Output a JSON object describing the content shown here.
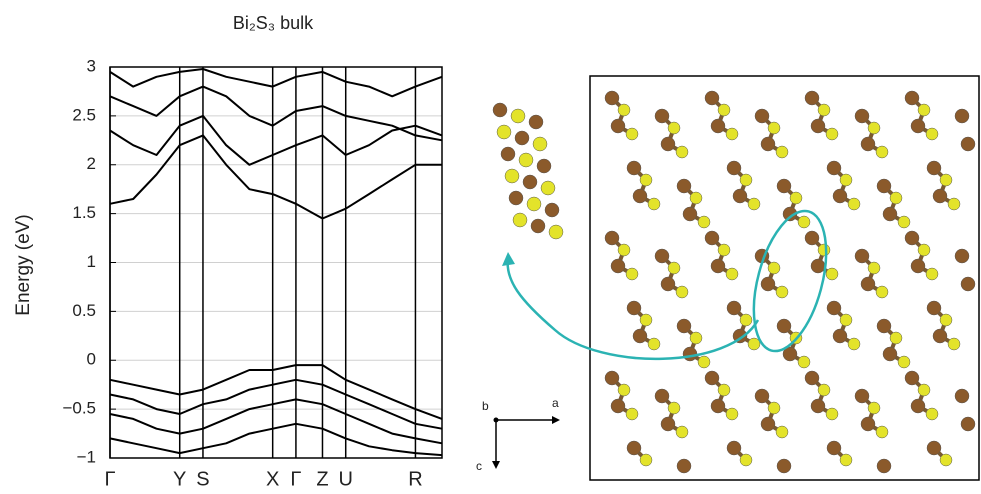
{
  "chart_data": {
    "type": "line",
    "title": "Bi₂S₃ bulk",
    "y_label": "Energy (eV)",
    "x": [
      0,
      0.07,
      0.14,
      0.21,
      0.28,
      0.35,
      0.42,
      0.49,
      0.56,
      0.64,
      0.71,
      0.78,
      0.85,
      0.92,
      1.0
    ],
    "xlim": [
      0,
      1
    ],
    "xticks": [
      {
        "value": 0,
        "label": "Γ"
      },
      {
        "value": 0.21,
        "label": "Y"
      },
      {
        "value": 0.28,
        "label": "S"
      },
      {
        "value": 0.49,
        "label": "X"
      },
      {
        "value": 0.56,
        "label": "Γ"
      },
      {
        "value": 0.64,
        "label": "Z"
      },
      {
        "value": 0.71,
        "label": "U"
      },
      {
        "value": 0.92,
        "label": "R"
      }
    ],
    "ylim": [
      -1,
      3
    ],
    "yticks": [
      {
        "value": -1,
        "label": "−1"
      },
      {
        "value": -0.5,
        "label": "−0.5"
      },
      0,
      0.5,
      1,
      1.5,
      2,
      2.5,
      3
    ],
    "grid": true,
    "series": [
      {
        "color": "#000000",
        "values": [
          1.6,
          1.65,
          1.9,
          2.2,
          2.3,
          2.0,
          1.75,
          1.7,
          1.6,
          1.45,
          1.55,
          1.7,
          1.85,
          2.0,
          2.0
        ]
      },
      {
        "color": "#000000",
        "values": [
          2.35,
          2.2,
          2.1,
          2.4,
          2.5,
          2.2,
          2.0,
          2.1,
          2.2,
          2.3,
          2.1,
          2.2,
          2.35,
          2.4,
          2.3
        ]
      },
      {
        "color": "#000000",
        "values": [
          2.7,
          2.6,
          2.5,
          2.7,
          2.8,
          2.7,
          2.5,
          2.4,
          2.55,
          2.6,
          2.5,
          2.45,
          2.4,
          2.3,
          2.25
        ]
      },
      {
        "color": "#000000",
        "values": [
          2.95,
          2.8,
          2.9,
          2.95,
          2.98,
          2.9,
          2.85,
          2.8,
          2.9,
          2.95,
          2.85,
          2.8,
          2.7,
          2.8,
          2.9
        ]
      },
      {
        "color": "#000000",
        "values": [
          -0.2,
          -0.25,
          -0.3,
          -0.35,
          -0.3,
          -0.2,
          -0.1,
          -0.1,
          -0.05,
          -0.05,
          -0.2,
          -0.3,
          -0.4,
          -0.5,
          -0.6
        ]
      },
      {
        "color": "#000000",
        "values": [
          -0.35,
          -0.4,
          -0.5,
          -0.55,
          -0.45,
          -0.4,
          -0.3,
          -0.25,
          -0.2,
          -0.25,
          -0.35,
          -0.45,
          -0.55,
          -0.65,
          -0.7
        ]
      },
      {
        "color": "#000000",
        "values": [
          -0.55,
          -0.6,
          -0.7,
          -0.75,
          -0.7,
          -0.6,
          -0.5,
          -0.45,
          -0.4,
          -0.45,
          -0.55,
          -0.65,
          -0.75,
          -0.8,
          -0.85
        ]
      },
      {
        "color": "#000000",
        "values": [
          -0.8,
          -0.85,
          -0.9,
          -0.95,
          -0.9,
          -0.85,
          -0.75,
          -0.7,
          -0.65,
          -0.7,
          -0.8,
          -0.88,
          -0.92,
          -0.95,
          -0.97
        ]
      }
    ],
    "annotations": [
      "b",
      "a",
      "c"
    ]
  }
}
